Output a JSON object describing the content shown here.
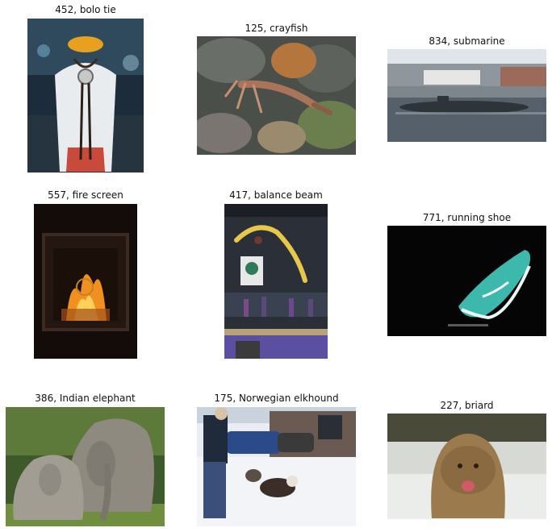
{
  "grid": {
    "cells": [
      {
        "caption": "452, bolo tie",
        "image": "bolo-tie-photo"
      },
      {
        "caption": "125, crayfish",
        "image": "crayfish-photo"
      },
      {
        "caption": "834, submarine",
        "image": "submarine-photo"
      },
      {
        "caption": "557, fire screen",
        "image": "fire-screen-photo"
      },
      {
        "caption": "417, balance beam",
        "image": "balance-beam-photo"
      },
      {
        "caption": "771, running shoe",
        "image": "running-shoe-photo"
      },
      {
        "caption": "386, Indian elephant",
        "image": "indian-elephant-photo"
      },
      {
        "caption": "175, Norwegian elkhound",
        "image": "norwegian-elkhound-photo"
      },
      {
        "caption": "227, briard",
        "image": "briard-photo"
      }
    ]
  }
}
